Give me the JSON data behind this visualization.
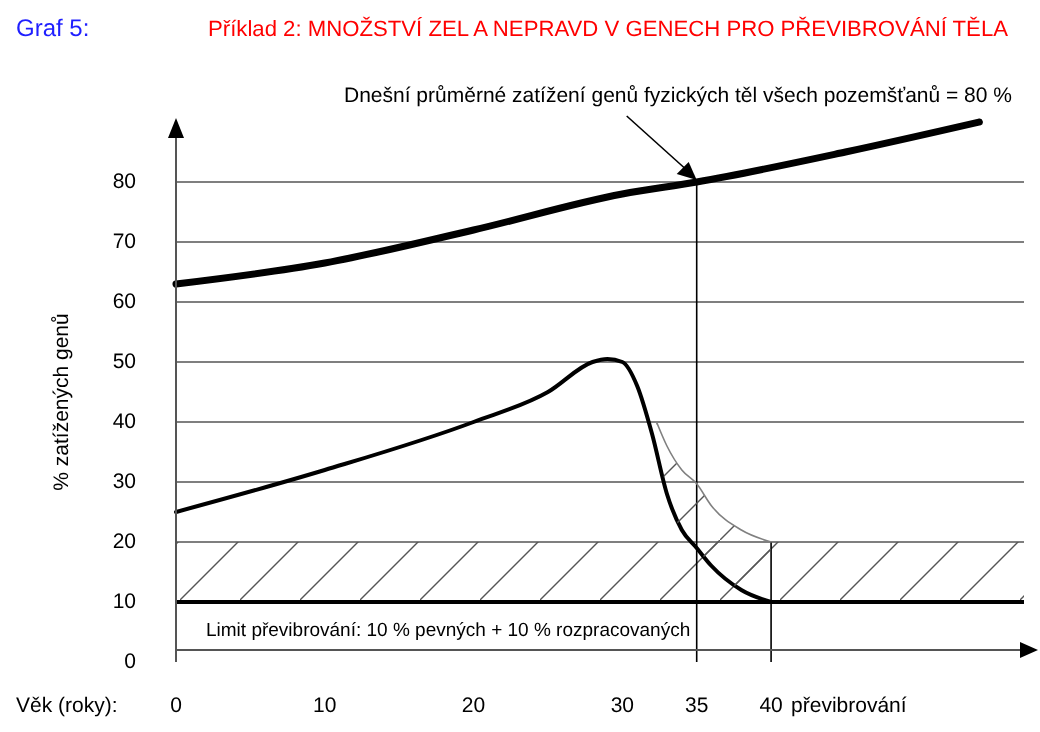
{
  "chart_data": {
    "type": "line",
    "title": "Graf 5:",
    "subtitle": "Příklad 2: MNOŽSTVÍ ZEL A NEPRAVD V GENECH PRO PŘEVIBROVÁNÍ TĚLA",
    "xlabel": "Věk (roky):",
    "ylabel": "% zatížených genů",
    "xlim": [
      0,
      57
    ],
    "ylim": [
      0,
      90
    ],
    "xticks": [
      0,
      10,
      20,
      30,
      35,
      40
    ],
    "yticks": [
      0,
      10,
      20,
      30,
      40,
      50,
      60,
      70,
      80
    ],
    "grid": "y",
    "marker": "none",
    "line_style": "solid",
    "series": [
      {
        "color": "#000000",
        "x": [
          0,
          10,
          20,
          30,
          35,
          45,
          54
        ],
        "values": [
          63,
          66.5,
          72,
          78,
          80,
          85,
          90
        ]
      },
      {
        "color": "#000000",
        "x": [
          0,
          10,
          20,
          25,
          28,
          29,
          30,
          31,
          32,
          33,
          34,
          35,
          36,
          38,
          40
        ],
        "values": [
          25,
          32,
          40,
          45,
          50,
          50.5,
          50,
          46,
          38,
          28,
          22,
          19,
          16,
          12,
          10
        ]
      },
      {
        "color": "#808080",
        "x": [
          32.3,
          33,
          34,
          35,
          36,
          38,
          40
        ],
        "values": [
          40,
          36,
          32,
          29.7,
          26,
          22,
          20
        ],
        "lower": [
          39,
          28,
          22,
          19,
          16,
          12,
          10
        ],
        "upper": [
          40,
          36,
          32,
          29.7,
          26,
          22,
          20
        ]
      }
    ],
    "bands": [
      {
        "axis": "y",
        "from": 10,
        "to": 20
      }
    ],
    "ref_lines": [
      {
        "axis": "y",
        "value": 10,
        "label": "Limit převibrování: 10 % pevných + 10 % rozpracovaných",
        "color": "#000000"
      },
      {
        "axis": "x",
        "value": 35,
        "color": "#000000"
      },
      {
        "axis": "x",
        "value": 40,
        "color": "#000000"
      }
    ],
    "annotations": [
      "převibrování",
      {
        "text": "Dnešní průměrné zatížení genů fyzických těl všech pozemšťanů = 80 %",
        "x": 35,
        "y": 80
      }
    ]
  }
}
